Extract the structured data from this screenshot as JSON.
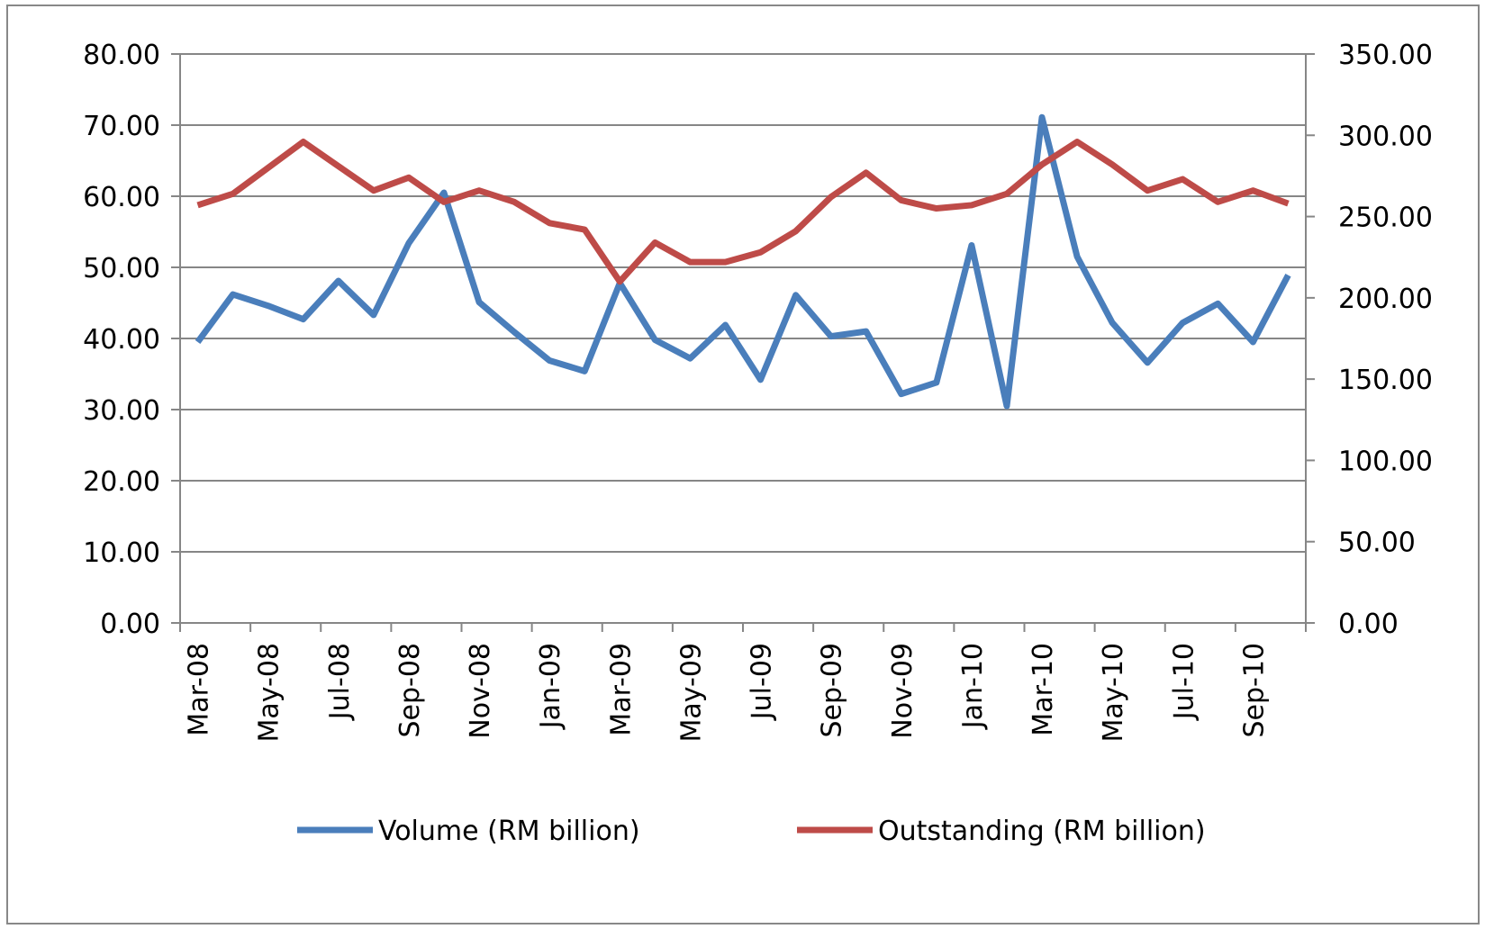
{
  "chart_data": {
    "type": "line",
    "categories": [
      "Mar-08",
      null,
      "May-08",
      null,
      "Jul-08",
      null,
      "Sep-08",
      null,
      "Nov-08",
      null,
      "Jan-09",
      null,
      "Mar-09",
      null,
      "May-09",
      null,
      "Jul-09",
      null,
      "Sep-09",
      null,
      "Nov-09",
      null,
      "Jan-10",
      null,
      "Mar-10",
      null,
      "May-10",
      null,
      "Jul-10",
      null,
      "Sep-10",
      null
    ],
    "series": [
      {
        "name": "Volume (RM billion)",
        "color": "#4a7ebb",
        "values": [
          39.5,
          46.2,
          44.6,
          42.7,
          48.1,
          43.3,
          53.4,
          60.5,
          45.1,
          40.9,
          36.9,
          35.4,
          47.8,
          39.8,
          37.2,
          41.9,
          34.2,
          46.1,
          40.3,
          41.0,
          32.2,
          33.8,
          53.1,
          30.5,
          71.1,
          51.5,
          42.2,
          36.6,
          42.2,
          44.9,
          39.5,
          48.9
        ]
      },
      {
        "name": "Outstanding (RM billion)",
        "color": "#be4b48",
        "axis": "y2",
        "values": [
          257,
          264,
          280,
          296,
          281,
          266,
          274,
          259,
          266,
          259,
          246,
          242,
          210,
          234,
          222,
          222,
          228,
          241,
          262,
          277,
          260,
          255,
          257,
          264,
          282,
          296,
          282,
          266,
          273,
          259,
          266,
          258
        ]
      }
    ],
    "ylim": [
      0,
      80
    ],
    "yticks": [
      {
        "value": 0,
        "label": "0.00"
      },
      {
        "value": 10,
        "label": "10.00"
      },
      {
        "value": 20,
        "label": "20.00"
      },
      {
        "value": 30,
        "label": "30.00"
      },
      {
        "value": 40,
        "label": "40.00"
      },
      {
        "value": 50,
        "label": "50.00"
      },
      {
        "value": 60,
        "label": "60.00"
      },
      {
        "value": 70,
        "label": "70.00"
      },
      {
        "value": 80,
        "label": "80.00"
      }
    ],
    "y2lim": [
      0,
      350
    ],
    "y2ticks": [
      {
        "value": 0,
        "label": "0.00"
      },
      {
        "value": 50,
        "label": "50.00"
      },
      {
        "value": 100,
        "label": "100.00"
      },
      {
        "value": 150,
        "label": "150.00"
      },
      {
        "value": 200,
        "label": "200.00"
      },
      {
        "value": 250,
        "label": "250.00"
      },
      {
        "value": 300,
        "label": "300.00"
      },
      {
        "value": 350,
        "label": "350.00"
      }
    ],
    "grid": true,
    "legend": "bottom"
  }
}
